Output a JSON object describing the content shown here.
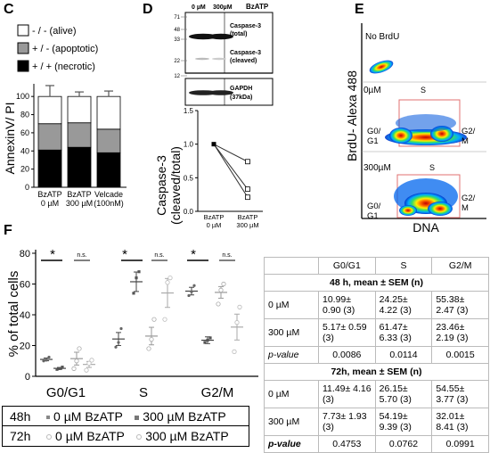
{
  "panels": {
    "C": "C",
    "D": "D",
    "E": "E",
    "F": "F"
  },
  "panel_c": {
    "legend": [
      "- / - (alive)",
      "+ / - (apoptotic)",
      "+ / + (necrotic)"
    ],
    "legend_colors": [
      "#ffffff",
      "#999999",
      "#000000"
    ],
    "ylabel": "AnnexinV/ PI",
    "yticks": [
      "0",
      "20",
      "40",
      "60",
      "80",
      "100"
    ],
    "bars": [
      {
        "label1": "BzATP",
        "label2": "0 µM"
      },
      {
        "label1": "BzATP",
        "label2": "300 µM"
      },
      {
        "label1": "Velcade",
        "label2": "(100nM)"
      }
    ]
  },
  "panel_d": {
    "blot_header": {
      "col1": "0 µM",
      "col2": "300µM",
      "title": "BzATP"
    },
    "mw_markers": [
      "71",
      "48",
      "33",
      "22",
      "12"
    ],
    "bands": {
      "caspase_total": "Caspase-3 (total)",
      "caspase_cleaved": "Caspase-3 (cleaved)",
      "gapdh": "GAPDH",
      "gapdh_kda": "(37kDa)"
    },
    "ylabel1": "Caspase-3",
    "ylabel2": "(cleaved/total)",
    "yticks": [
      "0.0",
      "0.5",
      "1.0",
      "1.5"
    ],
    "xlabels": [
      {
        "label1": "BzATP",
        "label2": "0 µM"
      },
      {
        "label1": "BzATP",
        "label2": "300 µM"
      }
    ]
  },
  "panel_e": {
    "ylabel": "BrdU- Alexa 488",
    "xlabel": "DNA",
    "plots": [
      {
        "title": "No BrdU"
      },
      {
        "title": "0µM",
        "s": "S",
        "g0g1_1": "G0/",
        "g0g1_2": "G1",
        "g2m_1": "G2/",
        "g2m_2": "M"
      },
      {
        "title": "300µM",
        "s": "S",
        "g0g1_1": "G0/",
        "g0g1_2": "G1",
        "g2m_1": "G2/",
        "g2m_2": "M"
      }
    ]
  },
  "panel_f": {
    "ylabel": "% of total cells",
    "yticks": [
      "0",
      "20",
      "40",
      "60",
      "80"
    ],
    "groups": [
      "G0/G1",
      "S",
      "G2/M"
    ],
    "sig": [
      "*",
      "n.s.",
      "*",
      "n.s.",
      "*",
      "n.s."
    ]
  },
  "legend_f": {
    "row1": {
      "time": "48h",
      "a": "0 µM BzATP",
      "b": "300 µM BzATP"
    },
    "row2": {
      "time": "72h",
      "a": "0 µM BzATP",
      "b": "300 µM BzATP"
    }
  },
  "table": {
    "headers": [
      "",
      "G0/G1",
      "S",
      "G2/M"
    ],
    "section1": "48 h, mean ± SEM (n)",
    "section2": "72h, mean ± SEM (n)",
    "rows1": [
      {
        "label": "0 µM",
        "c1": "10.99± 0.90 (3)",
        "c2": "24.25± 4.22 (3)",
        "c3": "55.38± 2.47 (3)"
      },
      {
        "label": "300 µM",
        "c1": "5.17± 0.59 (3)",
        "c2": "61.47± 6.33 (3)",
        "c3": "23.46± 2.19 (3)"
      },
      {
        "label": "p-value",
        "c1": "0.0086",
        "c2": "0.0114",
        "c3": "0.0015"
      }
    ],
    "rows2": [
      {
        "label": "0 µM",
        "c1": "11.49± 4.16 (3)",
        "c2": "26.15± 5.70 (3)",
        "c3": "54.55± 3.77 (3)"
      },
      {
        "label": "300 µM",
        "c1": "7.73± 1.93 (3)",
        "c2": "54.19± 9.39 (3)",
        "c3": "32.01± 8.41 (3)"
      },
      {
        "label": "p-value",
        "c1": "0.4753",
        "c2": "0.0762",
        "c3": "0.0991"
      }
    ]
  },
  "chart_data": [
    {
      "type": "bar",
      "panel": "C",
      "stacked": true,
      "ylabel": "AnnexinV/ PI",
      "ylim": [
        0,
        110
      ],
      "categories": [
        "BzATP 0 µM",
        "BzATP 300 µM",
        "Velcade (100nM)"
      ],
      "series": [
        {
          "name": "+ / + (necrotic)",
          "values": [
            41,
            44,
            38
          ],
          "errors": [
            7,
            0,
            2
          ]
        },
        {
          "name": "+ / - (apoptotic)",
          "values": [
            29,
            27,
            26
          ],
          "errors": [
            3,
            4,
            4
          ]
        },
        {
          "name": "- / - (alive)",
          "values": [
            30,
            29,
            36
          ],
          "errors": [
            12,
            5,
            6
          ]
        }
      ]
    },
    {
      "type": "line",
      "panel": "D",
      "ylabel": "Caspase-3 (cleaved/total)",
      "ylim": [
        0,
        1.5
      ],
      "categories": [
        "BzATP 0 µM",
        "BzATP 300 µM"
      ],
      "lines": [
        {
          "values": [
            1.0,
            0.74
          ]
        },
        {
          "values": [
            1.0,
            0.33
          ]
        },
        {
          "values": [
            1.0,
            0.21
          ]
        }
      ]
    },
    {
      "type": "scatter",
      "panel": "F",
      "ylabel": "% of total cells",
      "ylim": [
        0,
        80
      ],
      "categories": [
        "G0/G1",
        "S",
        "G2/M"
      ],
      "series": [
        {
          "name": "48h 0 µM BzATP",
          "means": [
            10.99,
            24.25,
            55.38
          ],
          "sem": [
            0.9,
            4.22,
            2.47
          ],
          "points": [
            [
              10,
              10.5,
              12.5
            ],
            [
              19,
              22,
              31
            ],
            [
              52.5,
              55,
              59
            ]
          ]
        },
        {
          "name": "48h 300 µM BzATP",
          "means": [
            5.17,
            61.47,
            23.46
          ],
          "sem": [
            0.59,
            6.33,
            2.19
          ],
          "points": [
            [
              4.5,
              5,
              6
            ],
            [
              54,
              64,
              68
            ],
            [
              22,
              23.5,
              25
            ]
          ]
        },
        {
          "name": "72h 0 µM BzATP",
          "means": [
            11.49,
            26.15,
            54.55
          ],
          "sem": [
            4.16,
            5.7,
            3.77
          ],
          "points": [
            [
              5,
              10,
              18
            ],
            [
              18,
              24,
              37
            ],
            [
              47,
              56,
              60
            ]
          ]
        },
        {
          "name": "72h 300 µM BzATP",
          "means": [
            7.73,
            54.19,
            32.01
          ],
          "sem": [
            1.93,
            9.39,
            8.41
          ],
          "points": [
            [
              4,
              8.5,
              10.5
            ],
            [
              37,
              61,
              64
            ],
            [
              16,
              35,
              45
            ]
          ]
        }
      ]
    }
  ]
}
